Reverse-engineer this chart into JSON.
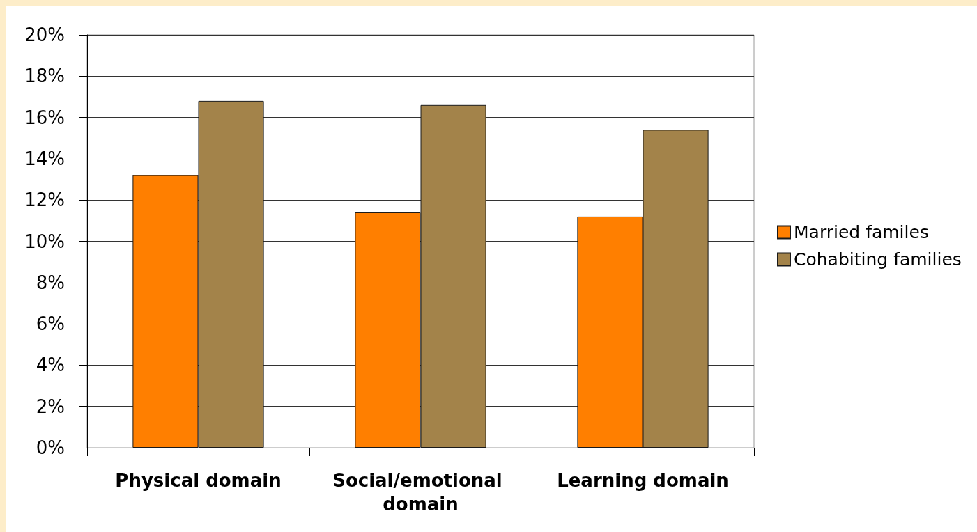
{
  "chart_data": {
    "type": "bar",
    "categories": [
      "Physical domain",
      "Social/emotional domain",
      "Learning domain"
    ],
    "series": [
      {
        "name": "Married familes",
        "color": "#ff7f00",
        "values": [
          13.2,
          11.4,
          11.2
        ]
      },
      {
        "name": "Cohabiting families",
        "color": "#a3834a",
        "values": [
          16.8,
          16.6,
          15.4
        ]
      }
    ],
    "ylim": [
      0,
      20
    ],
    "yticks": [
      {
        "value": 0,
        "label": "0%"
      },
      {
        "value": 2,
        "label": "2%"
      },
      {
        "value": 4,
        "label": "4%"
      },
      {
        "value": 6,
        "label": "6%"
      },
      {
        "value": 8,
        "label": "8%"
      },
      {
        "value": 10,
        "label": "10%"
      },
      {
        "value": 12,
        "label": "12%"
      },
      {
        "value": 14,
        "label": "14%"
      },
      {
        "value": 16,
        "label": "16%"
      },
      {
        "value": 18,
        "label": "18%"
      },
      {
        "value": 20,
        "label": "20%"
      }
    ],
    "grid": "y",
    "legend": "right"
  }
}
